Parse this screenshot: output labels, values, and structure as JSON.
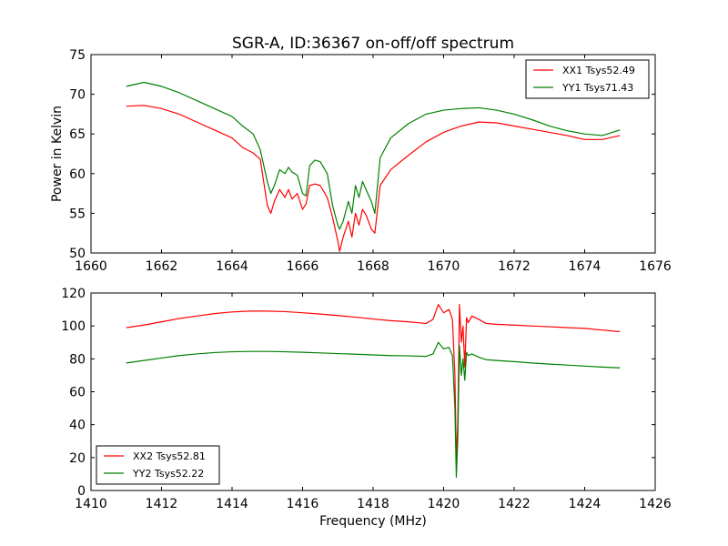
{
  "chart_data": [
    {
      "type": "line",
      "title": "SGR-A, ID:36367 on-off/off spectrum",
      "xlabel": "",
      "ylabel": "Power in Kelvin",
      "xlim": [
        1660,
        1676
      ],
      "ylim": [
        50,
        75
      ],
      "xticks": [
        1660,
        1662,
        1664,
        1666,
        1668,
        1670,
        1672,
        1674,
        1676
      ],
      "yticks": [
        50,
        55,
        60,
        65,
        70,
        75
      ],
      "grid": false,
      "legend": "top-right",
      "series": [
        {
          "name": "XX1 Tsys52.49",
          "color": "#ff0000",
          "x": [
            1661.0,
            1661.5,
            1662.0,
            1662.5,
            1663.0,
            1663.5,
            1664.0,
            1664.3,
            1664.6,
            1664.8,
            1665.0,
            1665.1,
            1665.2,
            1665.35,
            1665.5,
            1665.6,
            1665.7,
            1665.85,
            1666.0,
            1666.1,
            1666.2,
            1666.35,
            1666.5,
            1666.7,
            1666.85,
            1667.0,
            1667.05,
            1667.15,
            1667.3,
            1667.4,
            1667.5,
            1667.6,
            1667.7,
            1667.8,
            1667.95,
            1668.05,
            1668.2,
            1668.5,
            1669.0,
            1669.5,
            1670.0,
            1670.5,
            1671.0,
            1671.5,
            1672.0,
            1672.5,
            1673.0,
            1673.5,
            1674.0,
            1674.5,
            1675.0
          ],
          "values": [
            68.5,
            68.6,
            68.2,
            67.5,
            66.5,
            65.5,
            64.5,
            63.3,
            62.6,
            61.8,
            56.0,
            55.0,
            56.5,
            58.0,
            57.0,
            58.0,
            56.8,
            57.5,
            55.5,
            56.2,
            58.5,
            58.7,
            58.5,
            57.0,
            54.5,
            51.5,
            50.2,
            52.0,
            54.0,
            52.0,
            55.0,
            53.5,
            55.5,
            54.8,
            53.0,
            52.5,
            58.5,
            60.5,
            62.3,
            64.0,
            65.2,
            66.0,
            66.5,
            66.4,
            66.0,
            65.6,
            65.2,
            64.8,
            64.3,
            64.3,
            64.8
          ]
        },
        {
          "name": "YY1 Tsys71.43",
          "color": "#008000",
          "x": [
            1661.0,
            1661.5,
            1662.0,
            1662.5,
            1663.0,
            1663.5,
            1664.0,
            1664.3,
            1664.6,
            1664.8,
            1665.0,
            1665.1,
            1665.2,
            1665.35,
            1665.5,
            1665.6,
            1665.7,
            1665.85,
            1666.0,
            1666.1,
            1666.2,
            1666.35,
            1666.5,
            1666.7,
            1666.85,
            1667.0,
            1667.05,
            1667.15,
            1667.3,
            1667.4,
            1667.5,
            1667.6,
            1667.7,
            1667.8,
            1667.95,
            1668.05,
            1668.2,
            1668.5,
            1669.0,
            1669.5,
            1670.0,
            1670.5,
            1671.0,
            1671.5,
            1672.0,
            1672.5,
            1673.0,
            1673.5,
            1674.0,
            1674.5,
            1675.0
          ],
          "values": [
            71.0,
            71.5,
            71.0,
            70.2,
            69.2,
            68.2,
            67.2,
            66.0,
            65.0,
            63.0,
            59.0,
            57.5,
            58.5,
            60.5,
            60.0,
            60.8,
            60.2,
            59.8,
            57.5,
            57.2,
            61.0,
            61.7,
            61.5,
            60.0,
            56.0,
            53.5,
            53.0,
            54.0,
            56.5,
            55.0,
            58.5,
            57.0,
            59.0,
            58.0,
            56.5,
            55.0,
            62.0,
            64.5,
            66.3,
            67.5,
            68.0,
            68.2,
            68.3,
            68.0,
            67.5,
            66.8,
            66.0,
            65.4,
            65.0,
            64.8,
            65.5
          ]
        }
      ]
    },
    {
      "type": "line",
      "title": "",
      "xlabel": "Frequency (MHz)",
      "ylabel": "",
      "xlim": [
        1410,
        1426
      ],
      "ylim": [
        0,
        120
      ],
      "xticks": [
        1410,
        1412,
        1414,
        1416,
        1418,
        1420,
        1422,
        1424,
        1426
      ],
      "yticks": [
        0,
        20,
        40,
        60,
        80,
        100,
        120
      ],
      "grid": false,
      "legend": "bottom-left",
      "series": [
        {
          "name": "XX2 Tsys52.81",
          "color": "#ff0000",
          "x": [
            1411.0,
            1411.5,
            1412.0,
            1412.5,
            1413.0,
            1413.5,
            1414.0,
            1414.5,
            1415.0,
            1415.5,
            1416.0,
            1416.5,
            1417.0,
            1417.5,
            1418.0,
            1418.5,
            1419.0,
            1419.5,
            1419.7,
            1419.85,
            1420.0,
            1420.15,
            1420.25,
            1420.32,
            1420.36,
            1420.4,
            1420.45,
            1420.5,
            1420.55,
            1420.6,
            1420.65,
            1420.7,
            1420.8,
            1421.0,
            1421.2,
            1421.5,
            1422.0,
            1422.5,
            1423.0,
            1423.5,
            1424.0,
            1424.5,
            1425.0
          ],
          "values": [
            99.0,
            100.5,
            102.5,
            104.5,
            106.0,
            107.5,
            108.5,
            109.0,
            109.0,
            108.7,
            108.0,
            107.2,
            106.3,
            105.3,
            104.2,
            103.2,
            102.5,
            101.5,
            104.0,
            113.0,
            108.0,
            110.0,
            104.0,
            70.0,
            19.0,
            40.0,
            113.0,
            90.0,
            100.0,
            75.0,
            105.0,
            102.0,
            106.0,
            104.0,
            101.5,
            101.0,
            100.5,
            100.0,
            99.5,
            99.0,
            98.5,
            97.5,
            96.5
          ]
        },
        {
          "name": "YY2 Tsys52.22",
          "color": "#008000",
          "x": [
            1411.0,
            1411.5,
            1412.0,
            1412.5,
            1413.0,
            1413.5,
            1414.0,
            1414.5,
            1415.0,
            1415.5,
            1416.0,
            1416.5,
            1417.0,
            1417.5,
            1418.0,
            1418.5,
            1419.0,
            1419.5,
            1419.7,
            1419.85,
            1420.0,
            1420.15,
            1420.25,
            1420.32,
            1420.36,
            1420.4,
            1420.45,
            1420.5,
            1420.55,
            1420.6,
            1420.65,
            1420.7,
            1420.8,
            1421.0,
            1421.2,
            1421.5,
            1422.0,
            1422.5,
            1423.0,
            1423.5,
            1424.0,
            1424.5,
            1425.0
          ],
          "values": [
            77.5,
            79.0,
            80.5,
            82.0,
            83.0,
            83.8,
            84.3,
            84.5,
            84.5,
            84.3,
            84.0,
            83.6,
            83.2,
            82.8,
            82.4,
            82.0,
            81.8,
            81.5,
            83.0,
            90.0,
            86.0,
            87.0,
            82.0,
            50.0,
            8.0,
            30.0,
            88.0,
            70.0,
            80.0,
            67.0,
            84.0,
            82.0,
            83.0,
            81.0,
            79.5,
            79.0,
            78.3,
            77.5,
            76.8,
            76.2,
            75.6,
            75.0,
            74.5
          ]
        }
      ]
    }
  ]
}
